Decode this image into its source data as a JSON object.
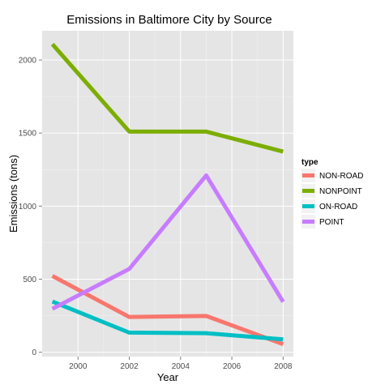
{
  "chart_data": {
    "type": "line",
    "title": "Emissions in Baltimore City by Source",
    "xlabel": "Year",
    "ylabel": "Emissions (tons)",
    "x": [
      1999,
      2002,
      2005,
      2008
    ],
    "xlim": [
      1998.6,
      2008.4
    ],
    "ylim": [
      -30,
      2200
    ],
    "xticks": [
      2000,
      2002,
      2004,
      2006,
      2008
    ],
    "yticks": [
      0,
      500,
      1000,
      1500,
      2000
    ],
    "grid": true,
    "legend_title": "type",
    "legend_position": "right",
    "series": [
      {
        "name": "NON-ROAD",
        "color": "#F8766D",
        "values": [
          522,
          241,
          248,
          55
        ]
      },
      {
        "name": "NONPOINT",
        "color": "#7CAE00",
        "values": [
          2108,
          1510,
          1510,
          1373
        ]
      },
      {
        "name": "ON-ROAD",
        "color": "#00BFC4",
        "values": [
          347,
          134,
          130,
          88
        ]
      },
      {
        "name": "POINT",
        "color": "#C77CFF",
        "values": [
          297,
          570,
          1210,
          345
        ]
      }
    ]
  }
}
